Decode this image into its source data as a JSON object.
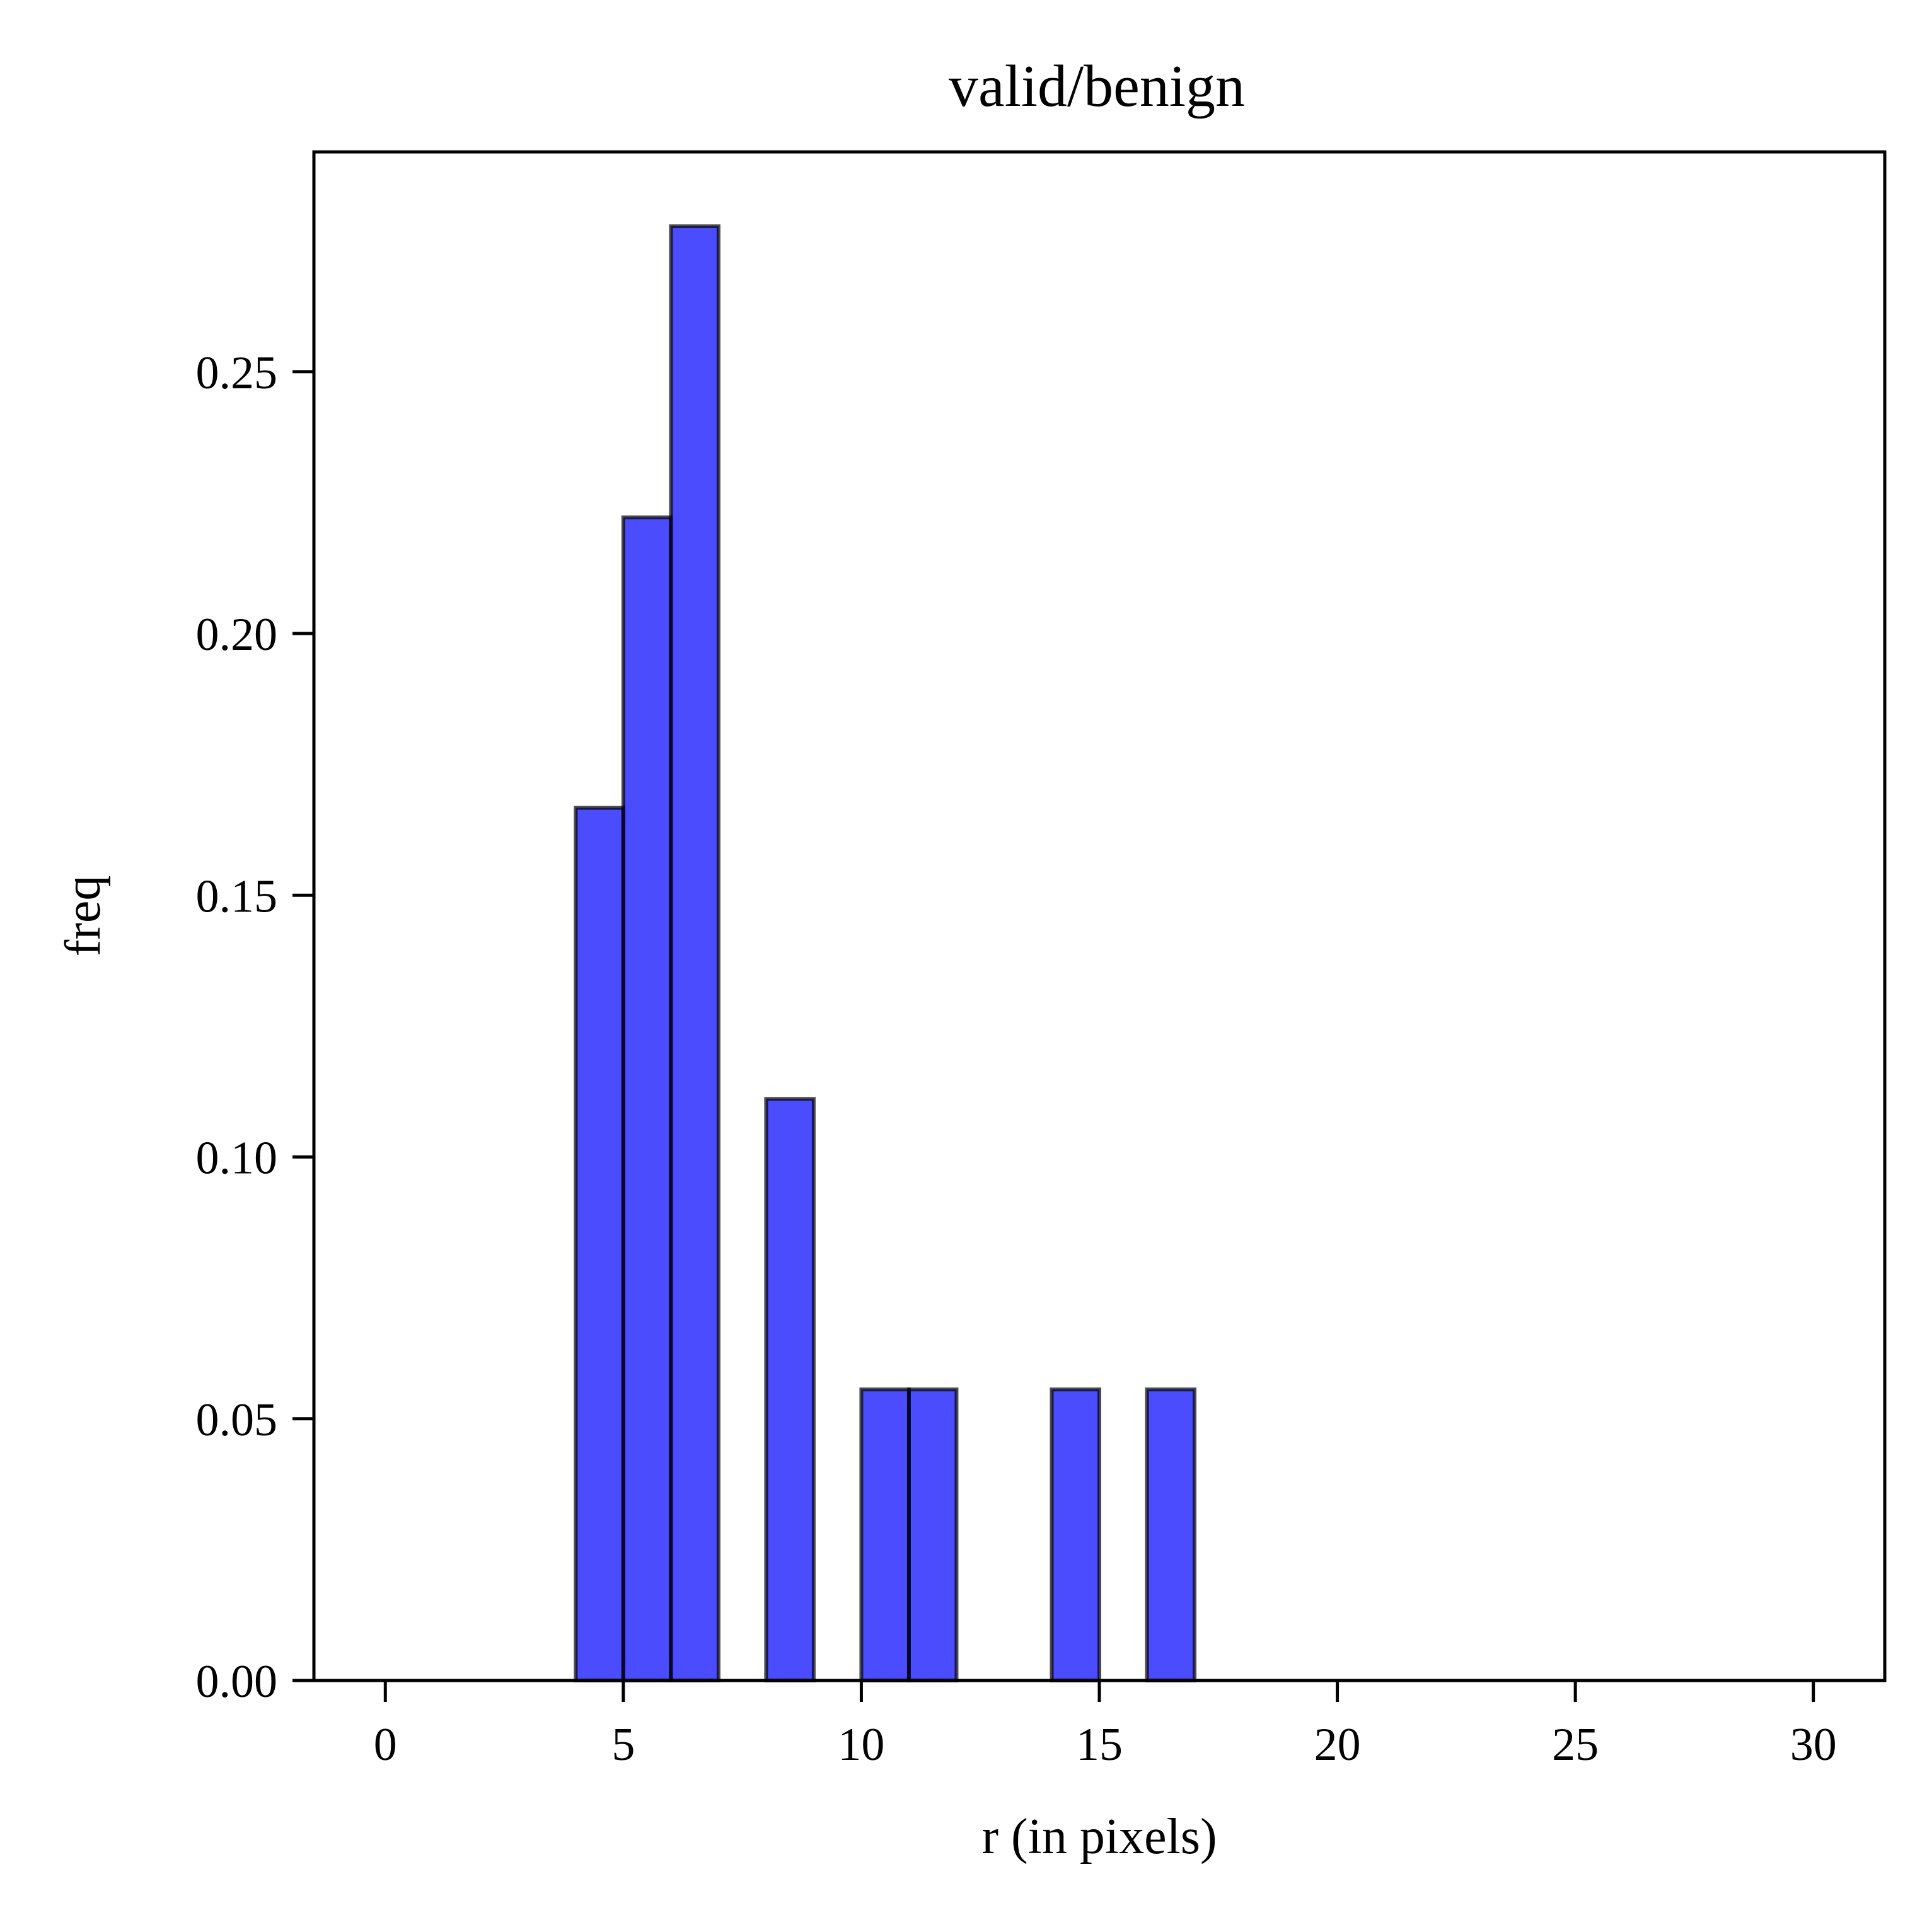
{
  "chart_data": {
    "type": "bar",
    "title": "valid/benign",
    "xlabel": "r (in pixels)",
    "ylabel": "freq",
    "xlim": [
      -1.5,
      31.5
    ],
    "ylim": [
      0,
      0.292
    ],
    "xticks": [
      0,
      5,
      10,
      15,
      20,
      25,
      30
    ],
    "xtick_labels": [
      "0",
      "5",
      "10",
      "15",
      "20",
      "25",
      "30"
    ],
    "yticks": [
      0.0,
      0.05,
      0.1,
      0.15,
      0.2,
      0.25
    ],
    "ytick_labels": [
      "0.00",
      "0.05",
      "0.10",
      "0.15",
      "0.20",
      "0.25"
    ],
    "bins": [
      {
        "x0": 0,
        "x1": 1,
        "value": 0
      },
      {
        "x0": 1,
        "x1": 2,
        "value": 0
      },
      {
        "x0": 2,
        "x1": 3,
        "value": 0
      },
      {
        "x0": 3,
        "x1": 4,
        "value": 0
      },
      {
        "x0": 4,
        "x1": 5,
        "value": 0.1667
      },
      {
        "x0": 5,
        "x1": 6,
        "value": 0.2222
      },
      {
        "x0": 6,
        "x1": 7,
        "value": 0.2778
      },
      {
        "x0": 7,
        "x1": 8,
        "value": 0
      },
      {
        "x0": 8,
        "x1": 9,
        "value": 0.1111
      },
      {
        "x0": 9,
        "x1": 10,
        "value": 0
      },
      {
        "x0": 10,
        "x1": 11,
        "value": 0.0556
      },
      {
        "x0": 11,
        "x1": 12,
        "value": 0.0556
      },
      {
        "x0": 12,
        "x1": 13,
        "value": 0
      },
      {
        "x0": 13,
        "x1": 14,
        "value": 0
      },
      {
        "x0": 14,
        "x1": 15,
        "value": 0.0556
      },
      {
        "x0": 15,
        "x1": 16,
        "value": 0
      },
      {
        "x0": 16,
        "x1": 17,
        "value": 0.0556
      },
      {
        "x0": 17,
        "x1": 18,
        "value": 0
      },
      {
        "x0": 18,
        "x1": 19,
        "value": 0
      },
      {
        "x0": 19,
        "x1": 20,
        "value": 0
      },
      {
        "x0": 20,
        "x1": 21,
        "value": 0
      },
      {
        "x0": 21,
        "x1": 22,
        "value": 0
      },
      {
        "x0": 22,
        "x1": 23,
        "value": 0
      },
      {
        "x0": 23,
        "x1": 24,
        "value": 0
      },
      {
        "x0": 24,
        "x1": 25,
        "value": 0
      },
      {
        "x0": 25,
        "x1": 26,
        "value": 0
      },
      {
        "x0": 26,
        "x1": 27,
        "value": 0
      },
      {
        "x0": 27,
        "x1": 28,
        "value": 0
      },
      {
        "x0": 28,
        "x1": 29,
        "value": 0
      },
      {
        "x0": 29,
        "x1": 30,
        "value": 0
      }
    ],
    "grid": false,
    "bar_color": "#0000ff",
    "bar_opacity": 0.7,
    "bar_edge_color": "#000000"
  }
}
